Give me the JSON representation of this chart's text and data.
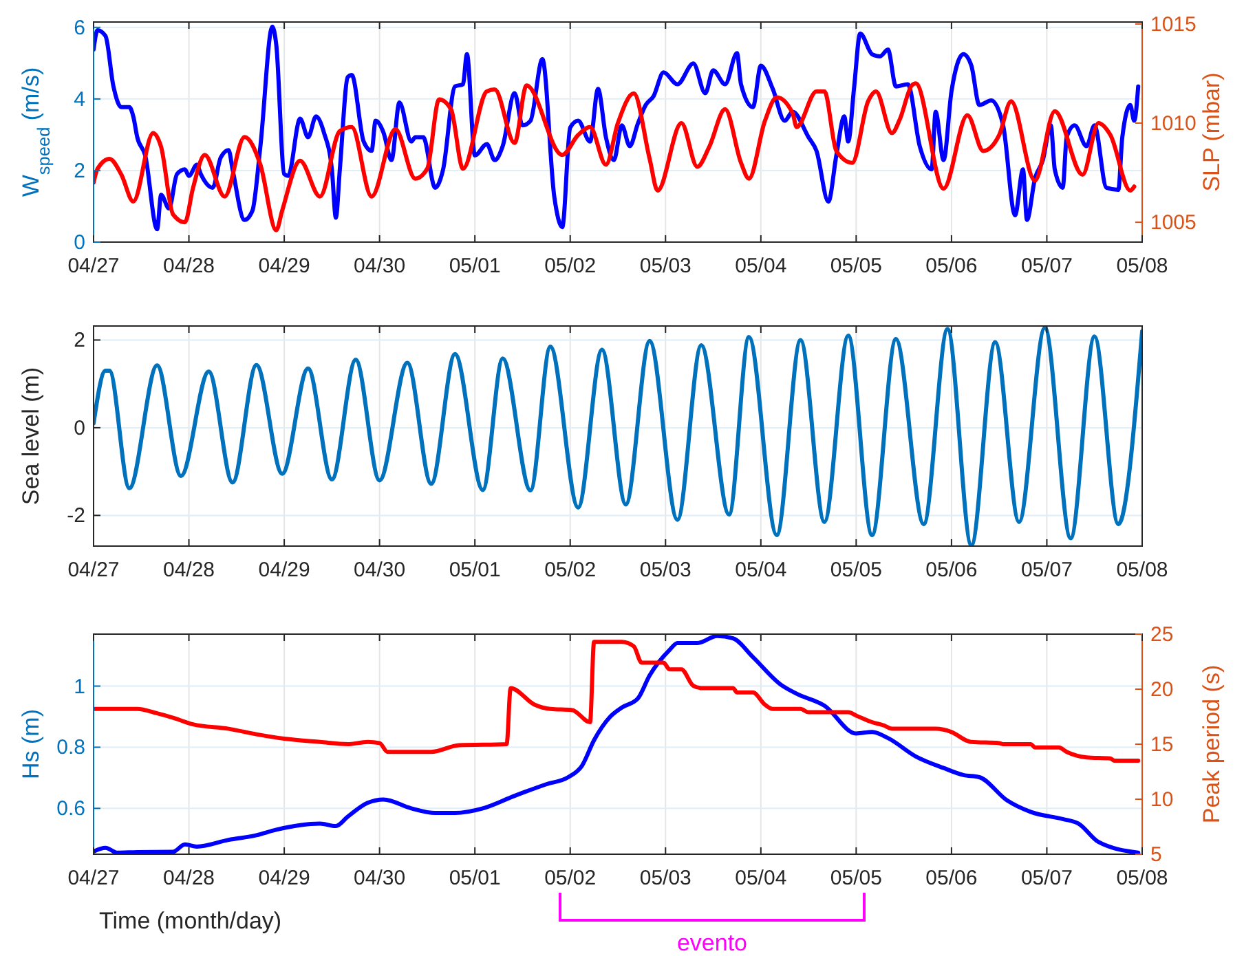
{
  "chart_data": [
    {
      "type": "line",
      "ylabel": "W$_{speed}$ (m/s)",
      "y2label": "SLP (mbar)",
      "xlim": [
        "--04-27",
        "--05-08"
      ],
      "xticks": [
        {
          "value": "--04-27",
          "label": "04/27"
        },
        {
          "value": "--04-28",
          "label": "04/28"
        },
        {
          "value": "--04-29",
          "label": "04/29"
        },
        {
          "value": "--04-30",
          "label": "04/30"
        },
        {
          "value": "--05-01",
          "label": "05/01"
        },
        {
          "value": "--05-02",
          "label": "05/02"
        },
        {
          "value": "--05-03",
          "label": "05/03"
        },
        {
          "value": "--05-04",
          "label": "05/04"
        },
        {
          "value": "--05-05",
          "label": "05/05"
        },
        {
          "value": "--05-06",
          "label": "05/06"
        },
        {
          "value": "--05-07",
          "label": "05/07"
        },
        {
          "value": "--05-08",
          "label": "05/08"
        }
      ],
      "ylim": [
        0,
        6.15
      ],
      "yticks": [
        0,
        2,
        4,
        6
      ],
      "y2lim": [
        1004,
        1015.1
      ],
      "y2ticks": [
        1005,
        1010,
        1015
      ],
      "grid": true,
      "series": [
        {
          "color": "#0000ff",
          "x": [
            "--04-27T00:00",
            "--04-27T01:00",
            "--04-27T03:00",
            "--04-27T05:00",
            "--04-27T07:00",
            "--04-27T09:00",
            "--04-27T10:00",
            "--04-27T11:00",
            "--04-27T13:00",
            "--04-27T16:00",
            "--04-27T17:00",
            "--04-27T19:00",
            "--04-27T21:00",
            "--04-27T23:00",
            "--04-28T00:00",
            "--04-28T02:00",
            "--04-28T03:00",
            "--04-28T06:00",
            "--04-28T08:00",
            "--04-28T10:00",
            "--04-28T11:00",
            "--04-28T14:00",
            "--04-28T16:00",
            "--04-28T18:00",
            "--04-28T21:00",
            "--04-28T22:00",
            "--04-29T00:00",
            "--04-29T01:00",
            "--04-29T04:00",
            "--04-29T06:00",
            "--04-29T08:00",
            "--04-29T10:00",
            "--04-29T12:00",
            "--04-29T13:00",
            "--04-29T14:00",
            "--04-29T16:00",
            "--04-29T17:00",
            "--04-29T20:00",
            "--04-29T22:00",
            "--04-29T23:00",
            "--04-30T01:00",
            "--04-30T03:00",
            "--04-30T05:00",
            "--04-30T08:00",
            "--04-30T09:00",
            "--04-30T11:00",
            "--04-30T14:00",
            "--04-30T16:00",
            "--04-30T19:00",
            "--04-30T21:00",
            "--04-30T22:00",
            "--05-01T00:00",
            "--05-01T03:00",
            "--05-01T05:00",
            "--05-01T07:00",
            "--05-01T10:00",
            "--05-01T12:00",
            "--05-01T14:00",
            "--05-01T17:00",
            "--05-01T20:00",
            "--05-01T22:00",
            "--05-02T00:00",
            "--05-02T02:00",
            "--05-02T05:00",
            "--05-02T07:00",
            "--05-02T09:00",
            "--05-02T11:00",
            "--05-02T13:00",
            "--05-02T15:00",
            "--05-02T17:00",
            "--05-02T19:00",
            "--05-02T21:00",
            "--05-02T23:30",
            "--05-03T03:00",
            "--05-03T07:00",
            "--05-03T10:00",
            "--05-03T12:00",
            "--05-03T15:00",
            "--05-03T18:00",
            "--05-03T19:00",
            "--05-03T22:00",
            "--05-04T00:00",
            "--05-04T03:00",
            "--05-04T06:00",
            "--05-04T08:00",
            "--05-04T12:00",
            "--05-04T14:00",
            "--05-04T17:00",
            "--05-04T19:00",
            "--05-04T21:00",
            "--05-04T22:00",
            "--05-04T23:30",
            "--05-05T01:00",
            "--05-05T04:00",
            "--05-05T06:00",
            "--05-05T08:00",
            "--05-05T10:00",
            "--05-05T13:00",
            "--05-05T16:00",
            "--05-05T19:00",
            "--05-05T20:00",
            "--05-05T22:00",
            "--05-06T00:00",
            "--05-06T03:00",
            "--05-06T05:00",
            "--05-06T07:00",
            "--05-06T10:00",
            "--05-06T13:00",
            "--05-06T16:00",
            "--05-06T18:00",
            "--05-06T19:00",
            "--05-06T21:00",
            "--05-06T23:00",
            "--05-07T01:00",
            "--05-07T02:00",
            "--05-07T04:00",
            "--05-07T05:00",
            "--05-07T07:00",
            "--05-07T10:00",
            "--05-07T12:00",
            "--05-07T15:00",
            "--05-07T18:00",
            "--05-07T19:00",
            "--05-07T21:00",
            "--05-07T22:00",
            "--05-07T23:00"
          ],
          "values": [
            5.38,
            5.92,
            5.76,
            4.35,
            3.77,
            3.77,
            3.51,
            2.93,
            2.42,
            0.36,
            1.32,
            0.94,
            1.9,
            2.03,
            1.85,
            2.16,
            1.9,
            1.52,
            2.36,
            2.57,
            2.03,
            0.62,
            0.88,
            2.68,
            6.02,
            5.51,
            1.9,
            1.85,
            3.45,
            2.93,
            3.51,
            3.06,
            2.03,
            0.68,
            2.03,
            4.61,
            4.67,
            2.81,
            2.55,
            3.39,
            3.06,
            2.29,
            3.9,
            2.81,
            2.93,
            2.93,
            1.52,
            2.03,
            4.35,
            4.41,
            5.25,
            2.42,
            2.74,
            2.29,
            2.68,
            4.16,
            3.26,
            3.39,
            5.11,
            1.26,
            0.42,
            3.2,
            3.39,
            2.81,
            4.28,
            2.93,
            2.29,
            3.26,
            2.68,
            3.3,
            3.83,
            4.08,
            4.74,
            4.41,
            4.99,
            4.16,
            4.8,
            4.41,
            5.28,
            4.41,
            3.77,
            4.93,
            4.28,
            3.39,
            3.64,
            2.93,
            2.55,
            1.13,
            2.42,
            3.51,
            2.81,
            4.35,
            5.83,
            5.25,
            5.19,
            5.38,
            4.35,
            4.41,
            2.68,
            2.03,
            3.64,
            2.29,
            4.22,
            5.25,
            4.93,
            3.83,
            3.96,
            3.26,
            0.75,
            2.03,
            0.62,
            1.77,
            2.29,
            3.26,
            2.03,
            1.52,
            2.93,
            3.26,
            2.68,
            3.26,
            1.52,
            1.46,
            2.93,
            3.83,
            3.39,
            4.35
          ]
        },
        {
          "color": "#ff0000",
          "axis": "y2",
          "x": [
            "--04-27T00:00",
            "--04-27T01:00",
            "--04-27T04:00",
            "--04-27T07:00",
            "--04-27T10:00",
            "--04-27T15:00",
            "--04-27T17:00",
            "--04-27T20:00",
            "--04-27T23:00",
            "--04-28T01:00",
            "--04-28T04:00",
            "--04-28T09:00",
            "--04-28T14:00",
            "--04-28T18:00",
            "--04-28T22:00",
            "--04-28T23:30",
            "--04-29T04:00",
            "--04-29T09:00",
            "--04-29T14:00",
            "--04-29T17:00",
            "--04-29T22:00",
            "--04-30T04:00",
            "--04-30T09:00",
            "--04-30T12:00",
            "--04-30T15:00",
            "--04-30T18:00",
            "--04-30T21:00",
            "--05-01T03:00",
            "--05-01T05:00",
            "--05-01T10:00",
            "--05-01T13:00",
            "--05-01T22:00",
            "--05-02T02:00",
            "--05-02T05:00",
            "--05-02T09:00",
            "--05-02T12:00",
            "--05-02T16:00",
            "--05-02T20:00",
            "--05-02T22:00",
            "--05-03T04:00",
            "--05-03T08:00",
            "--05-03T11:00",
            "--05-03T15:00",
            "--05-03T19:00",
            "--05-03T21:00",
            "--05-04T01:00",
            "--05-04T04:00",
            "--05-04T08:00",
            "--05-04T09:00",
            "--05-04T14:00",
            "--05-04T16:00",
            "--05-04T19:00",
            "--05-04T23:00",
            "--05-05T03:00",
            "--05-05T05:00",
            "--05-05T09:00",
            "--05-05T11:00",
            "--05-05T14:00",
            "--05-05T15:00",
            "--05-05T22:00",
            "--05-06T04:00",
            "--05-06T08:00",
            "--05-06T12:00",
            "--05-06T15:00",
            "--05-06T21:00",
            "--05-07T02:00",
            "--05-07T09:00",
            "--05-07T13:00",
            "--05-07T16:00",
            "--05-07T21:00",
            "--05-07T22:00"
          ],
          "values": [
            1007,
            1007.7,
            1008.2,
            1007.4,
            1006.05,
            1009.5,
            1008.8,
            1005.4,
            1005,
            1006.7,
            1008.4,
            1006.3,
            1009.3,
            1007.9,
            1004.6,
            1005.6,
            1008.1,
            1006.3,
            1009.6,
            1009.8,
            1006.3,
            1009.7,
            1007.2,
            1007.7,
            1011.2,
            1010.7,
            1007.7,
            1011.6,
            1011.7,
            1009,
            1011.9,
            1008.4,
            1009.4,
            1009.8,
            1007.9,
            1010,
            1011.5,
            1008.2,
            1006.6,
            1010,
            1007.8,
            1008.8,
            1010.7,
            1008,
            1007.2,
            1010.1,
            1011.3,
            1010.5,
            1009.8,
            1011.6,
            1011.6,
            1008.6,
            1008,
            1011.1,
            1011.6,
            1009.5,
            1010.2,
            1011.9,
            1012,
            1006.7,
            1010.4,
            1008.6,
            1009.4,
            1011.1,
            1007.1,
            1010.6,
            1007.4,
            1010,
            1009.4,
            1006.6,
            1006.8
          ]
        }
      ]
    },
    {
      "type": "line",
      "ylabel": "Sea level (m)",
      "xlim": [
        "--04-27",
        "--05-08"
      ],
      "xticks": [
        {
          "value": "--04-27",
          "label": "04/27"
        },
        {
          "value": "--04-28",
          "label": "04/28"
        },
        {
          "value": "--04-29",
          "label": "04/29"
        },
        {
          "value": "--04-30",
          "label": "04/30"
        },
        {
          "value": "--05-01",
          "label": "05/01"
        },
        {
          "value": "--05-02",
          "label": "05/02"
        },
        {
          "value": "--05-03",
          "label": "05/03"
        },
        {
          "value": "--05-04",
          "label": "05/04"
        },
        {
          "value": "--05-05",
          "label": "05/05"
        },
        {
          "value": "--05-06",
          "label": "05/06"
        },
        {
          "value": "--05-07",
          "label": "05/07"
        },
        {
          "value": "--05-08",
          "label": "05/08"
        }
      ],
      "ylim": [
        -2.7,
        2.32
      ],
      "yticks": [
        -2,
        0,
        2
      ],
      "grid": true,
      "series": [
        {
          "color": "#0072bd",
          "x": [
            "--04-27T00:00",
            "--04-27T03:00",
            "--04-27T04:00",
            "--04-27T09:00",
            "--04-27T16:00",
            "--04-27T22:00",
            "--04-28T05:00",
            "--04-28T11:00",
            "--04-28T17:00",
            "--04-28T23:30",
            "--04-29T06:00",
            "--04-29T12:00",
            "--04-29T18:00",
            "--04-30T00:00",
            "--04-30T07:00",
            "--04-30T13:00",
            "--04-30T19:00",
            "--05-01T02:00",
            "--05-01T07:00",
            "--05-01T14:00",
            "--05-01T19:00",
            "--05-02T02:00",
            "--05-02T08:00",
            "--05-02T14:00",
            "--05-02T20:00",
            "--05-03T03:00",
            "--05-03T09:00",
            "--05-03T16:00",
            "--05-03T21:00",
            "--05-04T04:00",
            "--05-04T10:00",
            "--05-04T16:00",
            "--05-04T22:00",
            "--05-05T04:00",
            "--05-05T10:00",
            "--05-05T17:00",
            "--05-05T23:00",
            "--05-06T05:00",
            "--05-06T11:00",
            "--05-06T17:00",
            "--05-06T23:30",
            "--05-07T06:00",
            "--05-07T12:00",
            "--05-07T18:00",
            "--05-08T00:00"
          ],
          "values": [
            0.1,
            1.3,
            1.3,
            -1.38,
            1.42,
            -1.1,
            1.28,
            -1.25,
            1.43,
            -1.05,
            1.35,
            -1.18,
            1.55,
            -1.2,
            1.48,
            -1.28,
            1.68,
            -1.42,
            1.58,
            -1.43,
            1.85,
            -1.82,
            1.78,
            -1.75,
            1.98,
            -2.1,
            1.88,
            -1.98,
            2.07,
            -2.45,
            2,
            -2.15,
            2.1,
            -2.45,
            2.02,
            -2.2,
            2.25,
            -2.68,
            1.95,
            -2.15,
            2.28,
            -2.52,
            2.08,
            -2.2,
            2.2
          ]
        }
      ]
    },
    {
      "type": "line",
      "ylabel": "Hs (m)",
      "y2label": "Peak period (s)",
      "xlabel": "Time (month/day)",
      "annotations": [
        "evento"
      ],
      "xlim": [
        "--04-27",
        "--05-08"
      ],
      "xticks": [
        {
          "value": "--04-27",
          "label": "04/27"
        },
        {
          "value": "--04-28",
          "label": "04/28"
        },
        {
          "value": "--04-29",
          "label": "04/29"
        },
        {
          "value": "--04-30",
          "label": "04/30"
        },
        {
          "value": "--05-01",
          "label": "05/01"
        },
        {
          "value": "--05-02",
          "label": "05/02"
        },
        {
          "value": "--05-03",
          "label": "05/03"
        },
        {
          "value": "--05-04",
          "label": "05/04"
        },
        {
          "value": "--05-05",
          "label": "05/05"
        },
        {
          "value": "--05-06",
          "label": "05/06"
        },
        {
          "value": "--05-07",
          "label": "05/07"
        },
        {
          "value": "--05-08",
          "label": "05/08"
        }
      ],
      "ylim": [
        0.45,
        1.17
      ],
      "yticks": [
        0.6,
        0.8,
        1
      ],
      "y2lim": [
        5,
        25
      ],
      "y2ticks": [
        5,
        10,
        15,
        20,
        25
      ],
      "grid": true,
      "series": [
        {
          "color": "#0000ff",
          "x": [
            "--04-27T00:00",
            "--04-27T03:00",
            "--04-27T06:00",
            "--04-27T11:00",
            "--04-27T20:00",
            "--04-27T23:00",
            "--04-28T02:00",
            "--04-28T10:00",
            "--04-28T17:00",
            "--04-28T22:00",
            "--04-29T09:00",
            "--04-29T13:00",
            "--04-29T16:00",
            "--04-29T21:00",
            "--04-30T01:00",
            "--04-30T08:00",
            "--04-30T14:00",
            "--04-30T19:00",
            "--05-01T02:00",
            "--05-01T10:00",
            "--05-01T18:00",
            "--05-01T23:30",
            "--05-02T03:00",
            "--05-02T06:00",
            "--05-02T10:00",
            "--05-02T13:00",
            "--05-02T17:00",
            "--05-02T20:00",
            "--05-03T01:00",
            "--05-03T03:00",
            "--05-03T08:00",
            "--05-03T13:00",
            "--05-03T17:00",
            "--05-03T22:00",
            "--05-04T05:00",
            "--05-04T09:00",
            "--05-04T16:00",
            "--05-05T00:00",
            "--05-05T04:00",
            "--05-05T08:00",
            "--05-05T15:00",
            "--05-05T22:00",
            "--05-06T03:00",
            "--05-06T07:00",
            "--05-06T14:00",
            "--05-06T20:00",
            "--05-07T04:00",
            "--05-07T08:00",
            "--05-07T13:00",
            "--05-07T23:00"
          ],
          "values": [
            0.459,
            0.471,
            0.455,
            0.457,
            0.458,
            0.482,
            0.475,
            0.497,
            0.512,
            0.53,
            0.55,
            0.542,
            0.573,
            0.618,
            0.629,
            0.6,
            0.585,
            0.585,
            0.6,
            0.641,
            0.679,
            0.702,
            0.74,
            0.823,
            0.899,
            0.93,
            0.959,
            1.035,
            1.118,
            1.141,
            1.141,
            1.164,
            1.156,
            1.095,
            1.005,
            0.975,
            0.936,
            0.845,
            0.85,
            0.83,
            0.77,
            0.732,
            0.709,
            0.702,
            0.626,
            0.588,
            0.565,
            0.55,
            0.49,
            0.455
          ]
        },
        {
          "color": "#ff0000",
          "axis": "y2",
          "x": [
            "--04-27T00:00",
            "--04-27T11:00",
            "--04-27T16:00",
            "--04-27T20:00",
            "--04-28T01:00",
            "--04-28T10:00",
            "--04-28T17:00",
            "--04-29T00:00",
            "--04-29T09:00",
            "--04-29T16:00",
            "--04-29T21:00",
            "--04-30T00:00",
            "--04-30T02:00",
            "--04-30T13:00",
            "--04-30T20:00",
            "--05-01T08:00",
            "--05-01T09:00",
            "--05-01T15:00",
            "--05-01T19:00",
            "--05-02T00:30",
            "--05-02T05:00",
            "--05-02T06:00",
            "--05-02T13:00",
            "--05-02T16:00",
            "--05-02T18:00",
            "--05-02T23:30",
            "--05-03T01:00",
            "--05-03T04:00",
            "--05-03T07:00",
            "--05-03T09:00",
            "--05-03T17:00",
            "--05-03T18:00",
            "--05-03T22:00",
            "--05-04T01:00",
            "--05-04T03:00",
            "--05-04T10:00",
            "--05-04T12:00",
            "--05-04T22:00",
            "--05-05T00:00",
            "--05-05T04:00",
            "--05-05T07:00",
            "--05-05T09:00",
            "--05-05T20:00",
            "--05-06T00:00",
            "--05-06T04:00",
            "--05-06T05:00",
            "--05-06T12:00",
            "--05-06T13:00",
            "--05-06T20:00",
            "--05-06T21:00",
            "--05-07T03:00",
            "--05-07T05:00",
            "--05-07T10:00",
            "--05-07T16:00",
            "--05-07T17:00",
            "--05-07T23:00"
          ],
          "values": [
            18.2,
            18.2,
            17.8,
            17.4,
            16.8,
            16.4,
            15.9,
            15.5,
            15.2,
            15,
            15.2,
            15.1,
            14.3,
            14.3,
            14.9,
            15,
            20.1,
            18.6,
            18.2,
            18.1,
            17,
            24.3,
            24.3,
            23.9,
            22.4,
            22.4,
            21.8,
            21.8,
            20.3,
            20.1,
            20.1,
            19.7,
            19.7,
            18.6,
            18.2,
            18.2,
            17.9,
            17.9,
            17.6,
            17,
            16.7,
            16.4,
            16.4,
            16.1,
            15.3,
            15.2,
            15.1,
            15,
            15,
            14.7,
            14.7,
            14.3,
            13.8,
            13.7,
            13.5,
            13.5
          ]
        }
      ]
    }
  ]
}
